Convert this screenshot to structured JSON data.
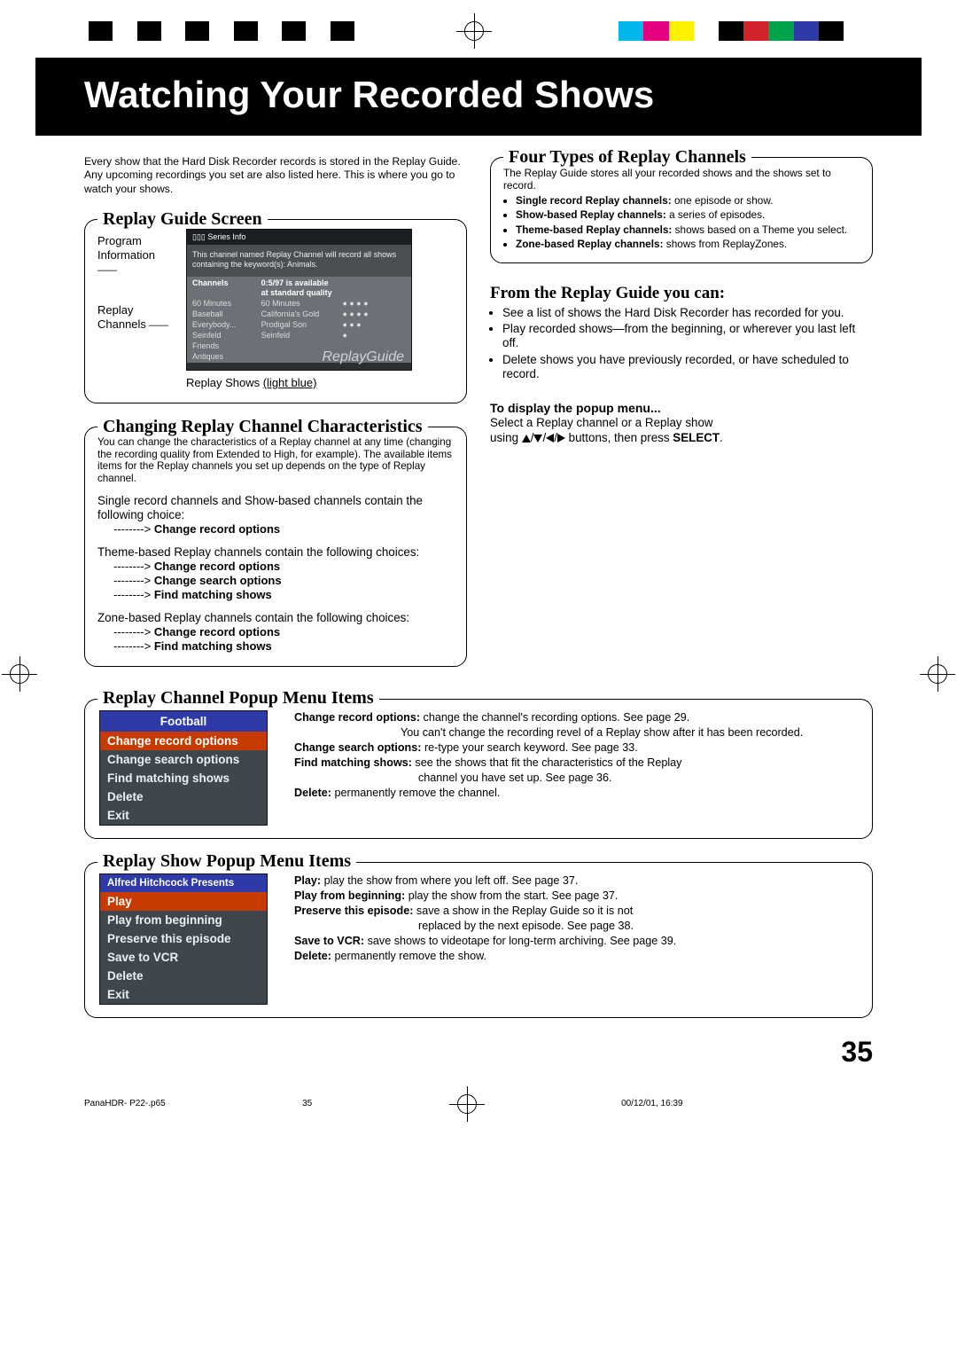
{
  "colors": {
    "black": "#000000",
    "white": "#ffffff",
    "cyan": "#00b7eb",
    "magenta": "#e4007f",
    "yellow": "#fff200",
    "red": "#d2232a",
    "green": "#00a44a",
    "blue": "#2e3aa8",
    "gray1": "#404040",
    "gray2": "#808080",
    "gray3": "#bfbfbf"
  },
  "regbars": {
    "left": [
      "#000000",
      "#ffffff",
      "#000000",
      "#ffffff",
      "#000000",
      "#ffffff",
      "#000000",
      "#ffffff",
      "#000000",
      "#ffffff",
      "#000000"
    ],
    "right": [
      "#ffffff",
      "#00b7eb",
      "#e4007f",
      "#fff200",
      "#ffffff",
      "#000000",
      "#d2232a",
      "#00a44a",
      "#2e3aa8",
      "#000000",
      "#ffffff"
    ]
  },
  "title": "Watching Your Recorded Shows",
  "intro": "Every show that the Hard Disk Recorder records is stored in the Replay Guide. Any upcoming recordings you set are also listed here. This is where you go to watch your shows.",
  "replayGuide": {
    "heading": "Replay Guide Screen",
    "label1": "Program Information",
    "label2": "Replay Channels",
    "caption_pre": "Replay Shows ",
    "caption_ul": "(light blue)",
    "shot": {
      "hdr": "▯▯▯ Series Info",
      "desc": "This channel named Replay Channel will record all shows containing the keyword(s): Animals.",
      "cols": [
        "Channels",
        "0:5/97 is available at standard quality",
        ""
      ],
      "rows": [
        [
          "60 Minutes",
          "60 Minutes",
          "● ● ● ●"
        ],
        [
          "Baseball",
          "California's Gold",
          "● ● ● ●"
        ],
        [
          "Everybody...",
          "Prodigal Son",
          "● ● ●"
        ],
        [
          "Seinfeld",
          "Seinfeld",
          "●"
        ],
        [
          "Friends",
          "",
          ""
        ],
        [
          "Antiques",
          "",
          ""
        ]
      ],
      "brand": "ReplayGuide"
    }
  },
  "changing": {
    "heading": "Changing Replay Channel Characteristics",
    "p1": "You can change the characteristics of a Replay channel at any time (changing the recording quality from Extended to High, for example). The available items items for the Replay channels you set up depends on the type of Replay channel.",
    "p2": "Single record channels and Show-based channels contain the following choice:",
    "opts1": [
      "Change record options"
    ],
    "p3": "Theme-based Replay channels contain the following choices:",
    "opts2": [
      "Change record options",
      "Change search options",
      "Find matching shows"
    ],
    "p4": "Zone-based Replay channels contain the following choices:",
    "opts3": [
      "Change record options",
      "Find matching shows"
    ]
  },
  "four": {
    "heading": "Four Types of  Replay Channels",
    "p": "The Replay Guide stores all your recorded shows and the shows set to record.",
    "items": [
      {
        "b": "Single record Replay channels:",
        "t": " one episode or show."
      },
      {
        "b": "Show-based Replay channels:",
        "t": " a series of episodes."
      },
      {
        "b": "Theme-based Replay channels:",
        "t": " shows based on a Theme you select."
      },
      {
        "b": "Zone-based Replay channels:",
        "t": " shows from ReplayZones."
      }
    ]
  },
  "fromGuide": {
    "heading": "From the Replay Guide you can:",
    "items": [
      "See a list of shows the Hard Disk Recorder has recorded for you.",
      "Play recorded shows—from the beginning, or wherever you last left off.",
      "Delete shows you have previously recorded, or have scheduled to record."
    ],
    "popup_h": "To display the popup menu...",
    "popup_p1": "Select a Replay channel or a Replay show",
    "popup_p2a": "using ",
    "popup_p2b": " buttons, then press ",
    "popup_p2c": "SELECT",
    "popup_p2d": "."
  },
  "popupChannel": {
    "heading": "Replay Channel Popup Menu Items",
    "menu": {
      "title": "Football",
      "highlight": "Change record options",
      "items": [
        "Change search options",
        "Find matching shows",
        "Delete",
        "Exit"
      ]
    },
    "defs": [
      {
        "b": "Change record options:",
        "t": " change the channel's recording options. See page 29.",
        "cont": "You can't change the recording revel of a Replay show after it has been recorded."
      },
      {
        "b": "Change search options:",
        "t": " re-type your search keyword. See page 33."
      },
      {
        "b": "Find matching shows:",
        "t": " see the shows that fit the characteristics of the Replay",
        "cont2": "channel you have set up. See page 36."
      },
      {
        "b": "Delete:",
        "t": " permanently remove the channel."
      }
    ]
  },
  "popupShow": {
    "heading": "Replay Show Popup Menu Items",
    "menu": {
      "title": "Alfred Hitchcock Presents",
      "highlight": "Play",
      "items": [
        "Play from beginning",
        "Preserve this episode",
        "Save to VCR",
        "Delete",
        "Exit"
      ]
    },
    "defs": [
      {
        "b": "Play:",
        "t": " play the show from where you left off. See page 37."
      },
      {
        "b": "Play from beginning:",
        "t": " play the show from the start. See page 37."
      },
      {
        "b": "Preserve this episode:",
        "t": " save a show in the Replay Guide so it is not",
        "cont2": "replaced by the next episode. See page 38."
      },
      {
        "b": "Save to VCR:",
        "t": " save shows to videotape for long-term archiving. See page 39."
      },
      {
        "b": "Delete:",
        "t": " permanently remove the show."
      }
    ]
  },
  "pageNumber": "35",
  "footer": {
    "file": "PanaHDR- P22-.p65",
    "pg": "35",
    "ts": "00/12/01, 16:39"
  }
}
